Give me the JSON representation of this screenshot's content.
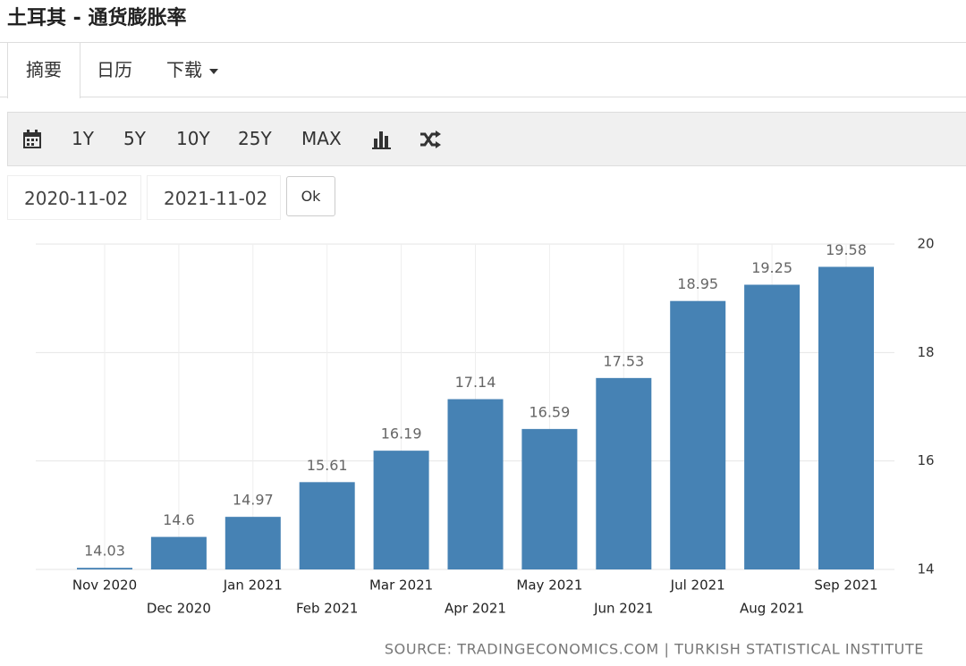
{
  "header": {
    "title": "土耳其 - 通货膨胀率"
  },
  "tabs": [
    "摘要",
    "日历",
    "下载"
  ],
  "toolbar": [
    "1Y",
    "5Y",
    "10Y",
    "25Y",
    "MAX"
  ],
  "date_range": {
    "start": "2020-11-02",
    "end": "2021-11-02",
    "button": "Ok"
  },
  "chart_data": {
    "type": "bar",
    "categories": [
      "Nov 2020",
      "Dec 2020",
      "Jan 2021",
      "Feb 2021",
      "Mar 2021",
      "Apr 2021",
      "May 2021",
      "Jun 2021",
      "Jul 2021",
      "Aug 2021",
      "Sep 2021"
    ],
    "values": [
      14.03,
      14.6,
      14.97,
      15.61,
      16.19,
      17.14,
      16.59,
      17.53,
      18.95,
      19.25,
      19.58
    ],
    "color": "#4682b4",
    "ylim": [
      14,
      20
    ],
    "yticks": [
      14,
      16,
      18,
      20
    ],
    "grid": true,
    "source": "SOURCE: TRADINGECONOMICS.COM | TURKISH STATISTICAL INSTITUTE"
  }
}
